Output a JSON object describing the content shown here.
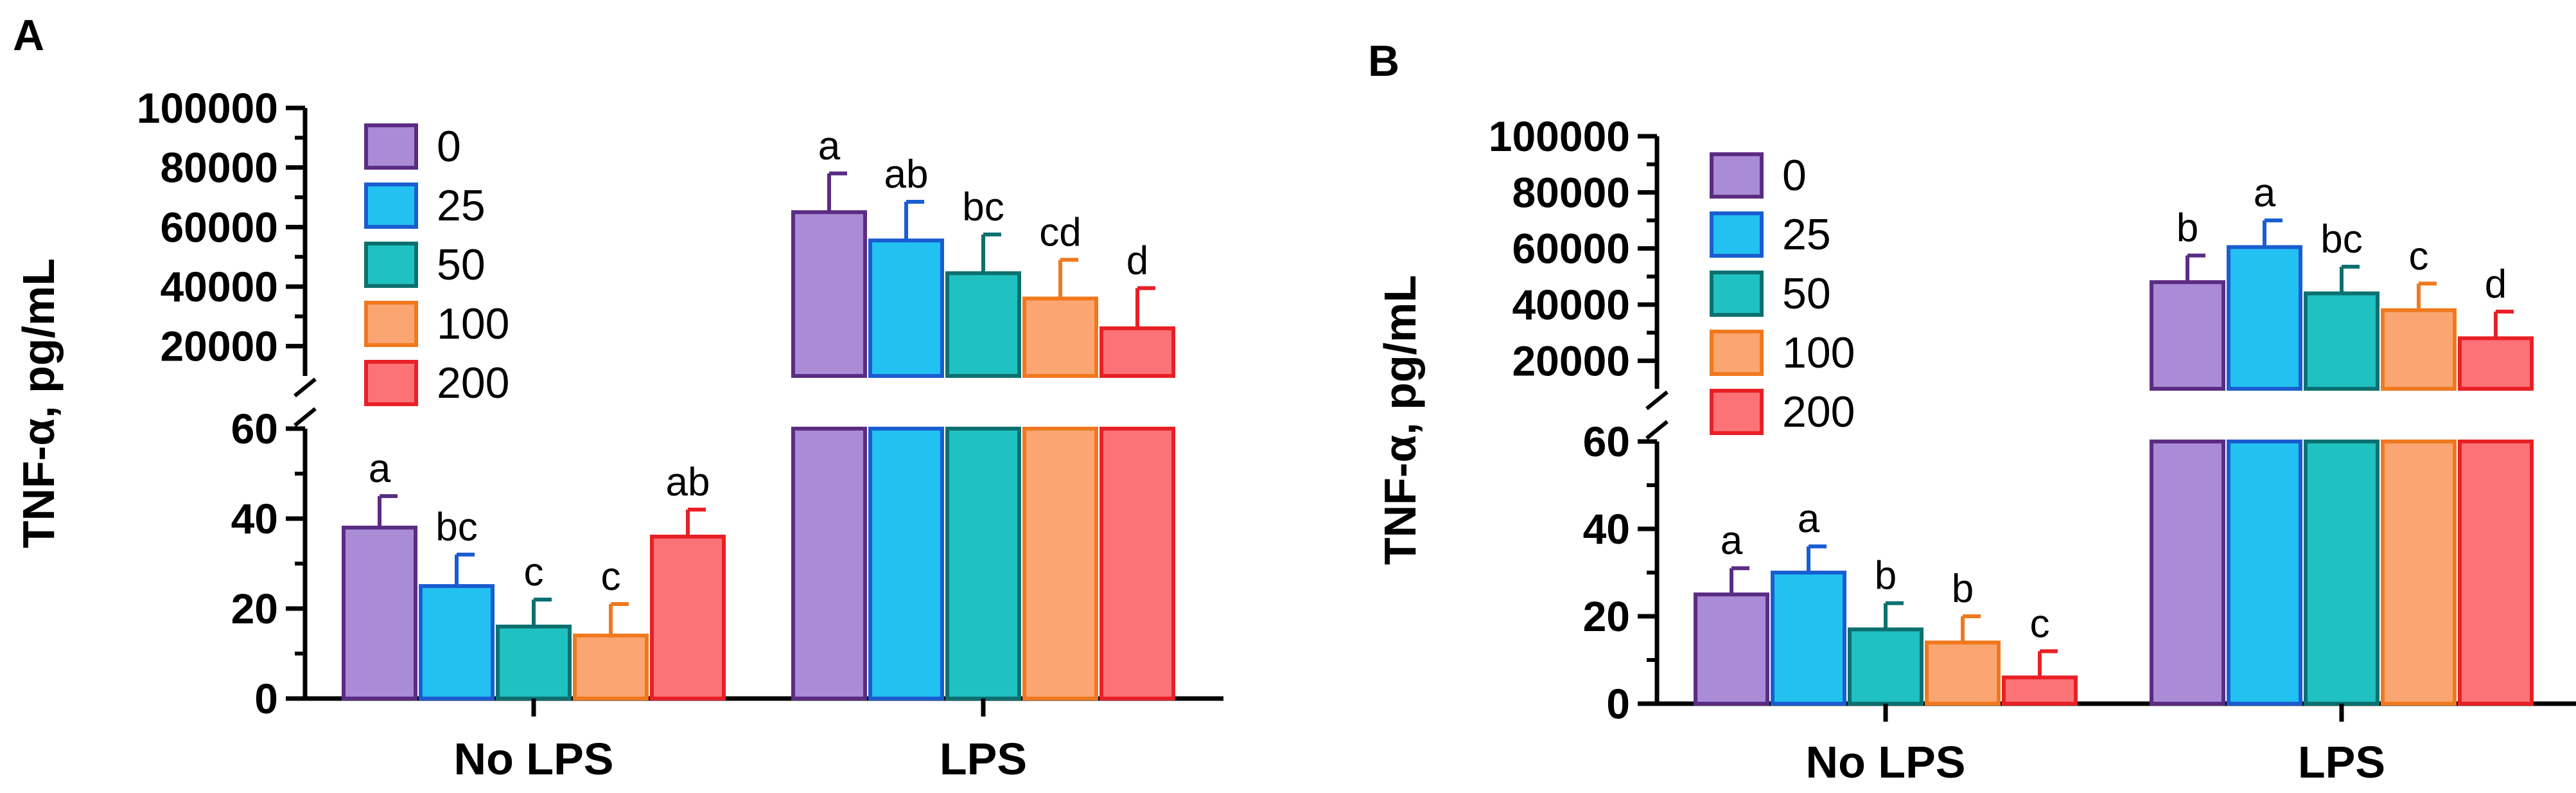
{
  "chart_data": [
    {
      "type": "bar",
      "panel": "A",
      "ylabel": "TNF-α, pg/mL",
      "xlabel": "",
      "categories": [
        "No LPS",
        "LPS"
      ],
      "axis_break": true,
      "y_lower_range": [
        0,
        60
      ],
      "y_upper_range": [
        10000,
        100000
      ],
      "y_lower_ticks": [
        0,
        20,
        40,
        60
      ],
      "y_upper_ticks": [
        20000,
        40000,
        60000,
        80000,
        100000
      ],
      "series": [
        {
          "name": "0",
          "color": "#a98bd6",
          "stroke": "#5b2c83",
          "values": [
            38,
            65000
          ],
          "errors": [
            7,
            13000
          ],
          "letters": [
            "a",
            "a"
          ]
        },
        {
          "name": "25",
          "color": "#22c1f1",
          "stroke": "#1a5dd0",
          "values": [
            25,
            55500
          ],
          "errors": [
            7,
            13000
          ],
          "letters": [
            "bc",
            "ab"
          ]
        },
        {
          "name": "50",
          "color": "#20c1c1",
          "stroke": "#0d7070",
          "values": [
            16,
            44500
          ],
          "errors": [
            6,
            13000
          ],
          "letters": [
            "c",
            "bc"
          ]
        },
        {
          "name": "100",
          "color": "#fba672",
          "stroke": "#f0781e",
          "values": [
            14,
            36000
          ],
          "errors": [
            7,
            13000
          ],
          "letters": [
            "c",
            "cd"
          ]
        },
        {
          "name": "200",
          "color": "#fb7377",
          "stroke": "#e82026",
          "values": [
            36,
            26000
          ],
          "errors": [
            6,
            13500
          ],
          "letters": [
            "ab",
            "d"
          ]
        }
      ]
    },
    {
      "type": "bar",
      "panel": "B",
      "ylabel": "TNF-α, pg/mL",
      "xlabel": "",
      "categories": [
        "No LPS",
        "LPS"
      ],
      "axis_break": true,
      "y_lower_range": [
        0,
        60
      ],
      "y_upper_range": [
        10000,
        100000
      ],
      "y_lower_ticks": [
        0,
        20,
        40,
        60
      ],
      "y_upper_ticks": [
        20000,
        40000,
        60000,
        80000,
        100000
      ],
      "series": [
        {
          "name": "0",
          "color": "#a98bd6",
          "stroke": "#5b2c83",
          "values": [
            25,
            48000
          ],
          "errors": [
            6,
            9500
          ],
          "letters": [
            "a",
            "b"
          ]
        },
        {
          "name": "25",
          "color": "#22c1f1",
          "stroke": "#1a5dd0",
          "values": [
            30,
            60500
          ],
          "errors": [
            6,
            9500
          ],
          "letters": [
            "a",
            "a"
          ]
        },
        {
          "name": "50",
          "color": "#20c1c1",
          "stroke": "#0d7070",
          "values": [
            17,
            44000
          ],
          "errors": [
            6,
            9500
          ],
          "letters": [
            "b",
            "bc"
          ]
        },
        {
          "name": "100",
          "color": "#fba672",
          "stroke": "#f0781e",
          "values": [
            14,
            38000
          ],
          "errors": [
            6,
            9500
          ],
          "letters": [
            "b",
            "c"
          ]
        },
        {
          "name": "200",
          "color": "#fb7377",
          "stroke": "#e82026",
          "values": [
            6,
            28000
          ],
          "errors": [
            6,
            9500
          ],
          "letters": [
            "c",
            "d"
          ]
        }
      ]
    }
  ]
}
